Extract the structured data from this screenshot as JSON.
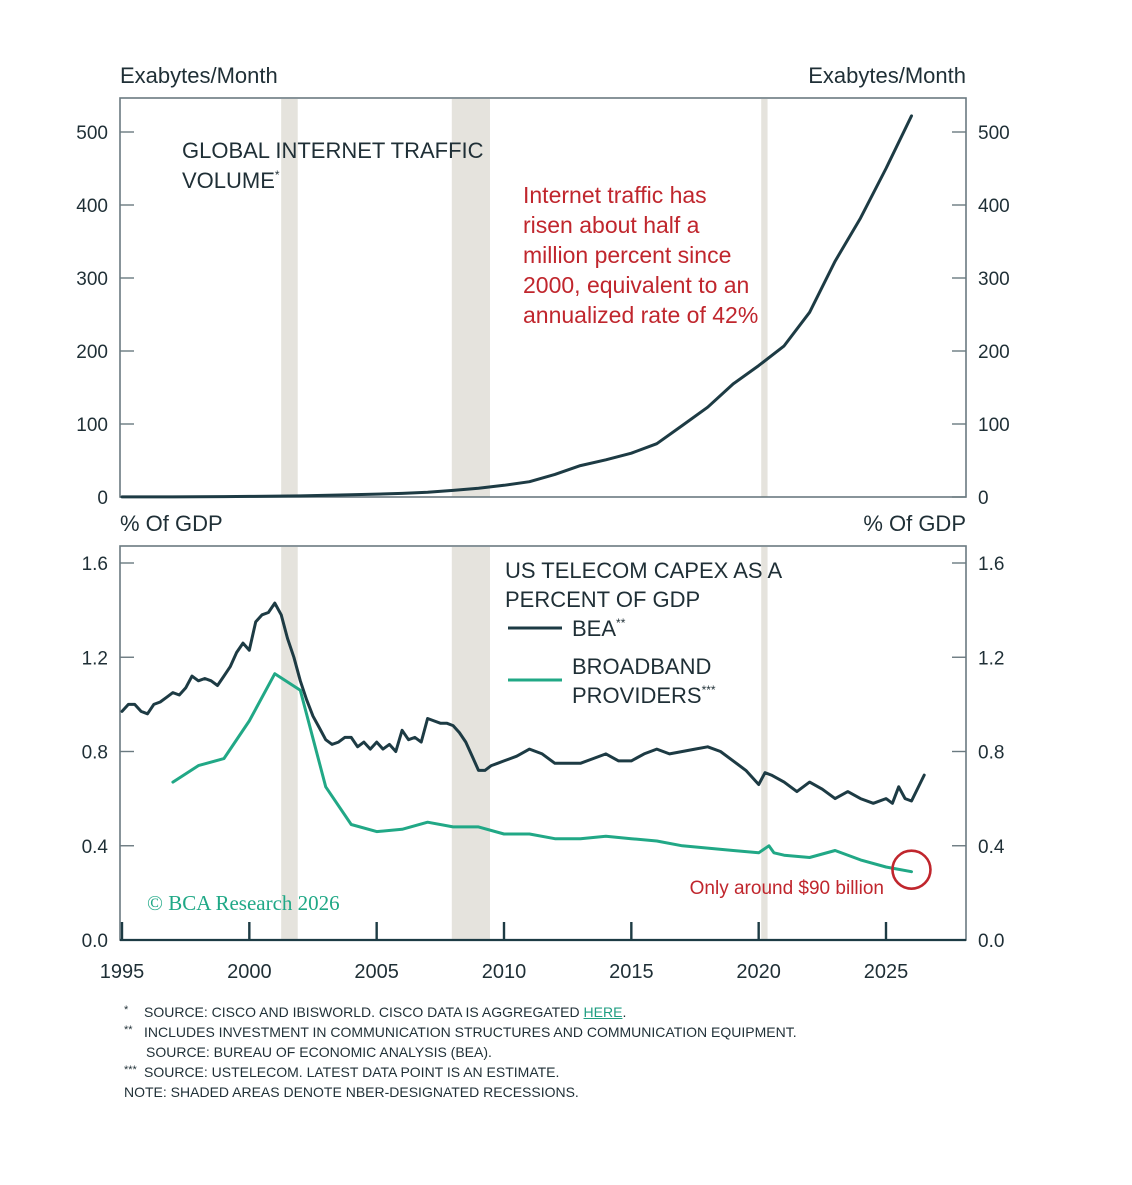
{
  "colors": {
    "dark_line": "#1d3b44",
    "green_line": "#21a886",
    "red": "#c0262d",
    "axis": "#6a7a80",
    "recession": "#e5e3dd",
    "text": "#1f2f36",
    "watermark": "#1fa886"
  },
  "chart_data": [
    {
      "type": "line",
      "title": "GLOBAL INTERNET TRAFFIC",
      "title_line2": "VOLUME",
      "title_marker": "*",
      "ylabel_left": "Exabytes/Month",
      "ylabel_right": "Exabytes/Month",
      "xlim": [
        1995,
        2028
      ],
      "ylim": [
        0,
        550
      ],
      "yticks": [
        0,
        100,
        200,
        300,
        400,
        500
      ],
      "ytick_labels": [
        "0",
        "100",
        "200",
        "300",
        "400",
        "500"
      ],
      "annotation": {
        "lines": [
          "Internet traffic has",
          "risen about half a",
          "million percent since",
          "2000, equivalent to an",
          "annualized rate of 42%"
        ]
      },
      "series": [
        {
          "color": "dark",
          "x": [
            1995,
            1997,
            1999,
            2000,
            2002,
            2004,
            2006,
            2007,
            2008,
            2009,
            2010,
            2011,
            2012,
            2013,
            2014,
            2015,
            2016,
            2017,
            2018,
            2019,
            2020,
            2021,
            2022,
            2023,
            2024,
            2025,
            2026
          ],
          "y": [
            0.1,
            0.2,
            0.5,
            0.8,
            1.5,
            3,
            5,
            6.5,
            9,
            12,
            16,
            21,
            31,
            43,
            51,
            60,
            73,
            98,
            123,
            155,
            180,
            207,
            253,
            323,
            382,
            450,
            522
          ]
        }
      ]
    },
    {
      "type": "line",
      "title": "US TELECOM CAPEX AS A",
      "title_line2": "PERCENT OF GDP",
      "ylabel_left": "% Of GDP",
      "ylabel_right": "% Of GDP",
      "xlim": [
        1995,
        2028
      ],
      "ylim": [
        0,
        1.6
      ],
      "yticks": [
        0,
        0.4,
        0.8,
        1.2,
        1.6
      ],
      "ytick_labels": [
        "0.0",
        "0.4",
        "0.8",
        "1.2",
        "1.6"
      ],
      "xticks": [
        1995,
        2000,
        2005,
        2010,
        2015,
        2020,
        2025
      ],
      "xtick_labels": [
        "1995",
        "2000",
        "2005",
        "2010",
        "2015",
        "2020",
        "2025"
      ],
      "recessions": [
        [
          2001.25,
          2001.9
        ],
        [
          2007.95,
          2009.45
        ],
        [
          2020.1,
          2020.35
        ]
      ],
      "legend": [
        {
          "name": "BEA",
          "marker": "**",
          "color": "dark"
        },
        {
          "name": "BROADBAND",
          "name_line2": "PROVIDERS",
          "marker": "***",
          "color": "green"
        }
      ],
      "series": [
        {
          "name": "BEA",
          "color": "dark",
          "x": [
            1995,
            1995.25,
            1995.5,
            1995.75,
            1996,
            1996.25,
            1996.5,
            1996.75,
            1997,
            1997.25,
            1997.5,
            1997.75,
            1998,
            1998.25,
            1998.5,
            1998.75,
            1999,
            1999.25,
            1999.5,
            1999.75,
            2000,
            2000.25,
            2000.5,
            2000.75,
            2001,
            2001.25,
            2001.5,
            2001.75,
            2002,
            2002.25,
            2002.5,
            2002.75,
            2003,
            2003.25,
            2003.5,
            2003.75,
            2004,
            2004.25,
            2004.5,
            2004.75,
            2005,
            2005.25,
            2005.5,
            2005.75,
            2006,
            2006.25,
            2006.5,
            2006.75,
            2007,
            2007.25,
            2007.5,
            2007.75,
            2008,
            2008.25,
            2008.5,
            2008.75,
            2009,
            2009.25,
            2009.5,
            2009.75,
            2010,
            2010.5,
            2011,
            2011.5,
            2012,
            2012.5,
            2013,
            2013.5,
            2014,
            2014.5,
            2015,
            2015.5,
            2016,
            2016.5,
            2017,
            2017.5,
            2018,
            2018.5,
            2019,
            2019.5,
            2020,
            2020.25,
            2020.5,
            2021,
            2021.5,
            2022,
            2022.5,
            2023,
            2023.5,
            2024,
            2024.5,
            2025,
            2025.25,
            2025.5,
            2025.75,
            2026,
            2026.5
          ],
          "y": [
            0.97,
            1.0,
            1.0,
            0.97,
            0.96,
            1.0,
            1.01,
            1.03,
            1.05,
            1.04,
            1.07,
            1.12,
            1.1,
            1.11,
            1.1,
            1.08,
            1.12,
            1.16,
            1.22,
            1.26,
            1.23,
            1.35,
            1.38,
            1.39,
            1.43,
            1.38,
            1.28,
            1.2,
            1.1,
            1.02,
            0.95,
            0.9,
            0.85,
            0.83,
            0.84,
            0.86,
            0.86,
            0.82,
            0.84,
            0.81,
            0.84,
            0.81,
            0.83,
            0.8,
            0.89,
            0.85,
            0.86,
            0.84,
            0.94,
            0.93,
            0.92,
            0.92,
            0.91,
            0.88,
            0.84,
            0.78,
            0.72,
            0.72,
            0.74,
            0.75,
            0.76,
            0.78,
            0.81,
            0.79,
            0.75,
            0.75,
            0.75,
            0.77,
            0.79,
            0.76,
            0.76,
            0.79,
            0.81,
            0.79,
            0.8,
            0.81,
            0.82,
            0.8,
            0.76,
            0.72,
            0.66,
            0.71,
            0.7,
            0.67,
            0.63,
            0.67,
            0.64,
            0.6,
            0.63,
            0.6,
            0.58,
            0.6,
            0.58,
            0.65,
            0.6,
            0.59,
            0.7
          ]
        },
        {
          "name": "BROADBAND PROVIDERS",
          "color": "green",
          "x": [
            1997,
            1998,
            1999,
            2000,
            2001,
            2002,
            2003,
            2004,
            2005,
            2006,
            2007,
            2008,
            2009,
            2010,
            2011,
            2012,
            2013,
            2014,
            2015,
            2016,
            2017,
            2018,
            2019,
            2020,
            2020.4,
            2020.6,
            2021,
            2022,
            2023,
            2024,
            2025,
            2026
          ],
          "y": [
            0.67,
            0.74,
            0.77,
            0.93,
            1.13,
            1.06,
            0.65,
            0.49,
            0.46,
            0.47,
            0.5,
            0.48,
            0.48,
            0.45,
            0.45,
            0.43,
            0.43,
            0.44,
            0.43,
            0.42,
            0.4,
            0.39,
            0.38,
            0.37,
            0.4,
            0.37,
            0.36,
            0.35,
            0.38,
            0.34,
            0.31,
            0.29
          ]
        }
      ],
      "highlight": {
        "x": 2026,
        "y": 0.29
      },
      "annotation": {
        "text": "Only around $90 billion"
      }
    }
  ],
  "watermark": "© BCA Research 2026",
  "footnotes": [
    {
      "marker": "*",
      "text": "SOURCE: CISCO AND IBISWORLD. CISCO DATA IS AGGREGATED ",
      "link": "HERE",
      "after": "."
    },
    {
      "marker": "**",
      "text": "INCLUDES INVESTMENT IN COMMUNICATION STRUCTURES AND COMMUNICATION EQUIPMENT."
    },
    {
      "marker": "",
      "text": "SOURCE: BUREAU OF ECONOMIC ANALYSIS (BEA)."
    },
    {
      "marker": "***",
      "text": "SOURCE: USTELECOM. LATEST DATA POINT IS AN ESTIMATE."
    },
    {
      "marker": "",
      "text": "NOTE: SHADED AREAS DENOTE NBER-DESIGNATED RECESSIONS.",
      "noindent": true
    }
  ]
}
